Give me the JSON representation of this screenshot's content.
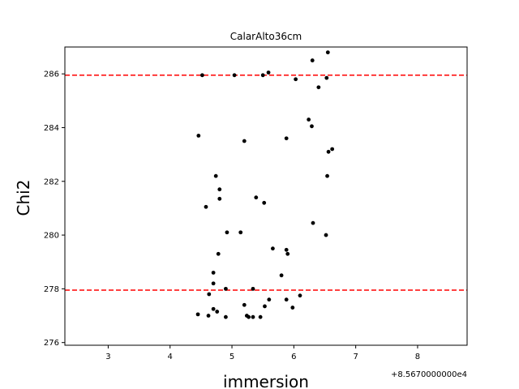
{
  "chart_data": {
    "type": "scatter",
    "title": "CalarAlto36cm",
    "xlabel": "immersion",
    "ylabel": "Chi2",
    "x_offset_label": "+8.5670000000e4",
    "x_ticks": [
      3,
      4,
      5,
      6,
      7,
      8
    ],
    "y_ticks": [
      276,
      278,
      280,
      282,
      284,
      286
    ],
    "xlim": [
      2.3,
      8.8
    ],
    "ylim": [
      275.9,
      287.0
    ],
    "grid": false,
    "point_color": "#000000",
    "reference_lines": [
      {
        "y": 285.95,
        "color": "#ff0000",
        "style": "dashed"
      },
      {
        "y": 277.95,
        "color": "#ff0000",
        "style": "dashed"
      }
    ],
    "points": [
      {
        "x": 4.45,
        "y": 277.05
      },
      {
        "x": 4.62,
        "y": 277.0
      },
      {
        "x": 4.7,
        "y": 277.25
      },
      {
        "x": 4.76,
        "y": 277.15
      },
      {
        "x": 4.9,
        "y": 276.95
      },
      {
        "x": 4.63,
        "y": 277.8
      },
      {
        "x": 4.7,
        "y": 278.2
      },
      {
        "x": 4.7,
        "y": 278.6
      },
      {
        "x": 4.9,
        "y": 278.0
      },
      {
        "x": 4.78,
        "y": 279.3
      },
      {
        "x": 4.92,
        "y": 280.1
      },
      {
        "x": 4.58,
        "y": 281.05
      },
      {
        "x": 4.8,
        "y": 281.35
      },
      {
        "x": 4.8,
        "y": 281.7
      },
      {
        "x": 4.74,
        "y": 282.2
      },
      {
        "x": 4.46,
        "y": 283.7
      },
      {
        "x": 4.52,
        "y": 285.95
      },
      {
        "x": 5.04,
        "y": 285.95
      },
      {
        "x": 5.14,
        "y": 280.1
      },
      {
        "x": 5.2,
        "y": 283.5
      },
      {
        "x": 5.2,
        "y": 277.4
      },
      {
        "x": 5.24,
        "y": 277.0
      },
      {
        "x": 5.27,
        "y": 276.95
      },
      {
        "x": 5.34,
        "y": 276.95
      },
      {
        "x": 5.46,
        "y": 276.95
      },
      {
        "x": 5.34,
        "y": 278.0
      },
      {
        "x": 5.39,
        "y": 281.4
      },
      {
        "x": 5.52,
        "y": 281.2
      },
      {
        "x": 5.53,
        "y": 277.35
      },
      {
        "x": 5.6,
        "y": 277.6
      },
      {
        "x": 5.66,
        "y": 279.5
      },
      {
        "x": 5.5,
        "y": 285.95
      },
      {
        "x": 5.59,
        "y": 286.05
      },
      {
        "x": 5.8,
        "y": 278.5
      },
      {
        "x": 5.88,
        "y": 277.6
      },
      {
        "x": 5.88,
        "y": 279.45
      },
      {
        "x": 5.9,
        "y": 279.3
      },
      {
        "x": 5.88,
        "y": 283.6
      },
      {
        "x": 5.98,
        "y": 277.3
      },
      {
        "x": 6.1,
        "y": 277.75
      },
      {
        "x": 6.03,
        "y": 285.8
      },
      {
        "x": 6.24,
        "y": 284.3
      },
      {
        "x": 6.29,
        "y": 284.05
      },
      {
        "x": 6.31,
        "y": 280.45
      },
      {
        "x": 6.3,
        "y": 286.5
      },
      {
        "x": 6.4,
        "y": 285.5
      },
      {
        "x": 6.52,
        "y": 280.0
      },
      {
        "x": 6.53,
        "y": 285.85
      },
      {
        "x": 6.54,
        "y": 282.2
      },
      {
        "x": 6.56,
        "y": 283.1
      },
      {
        "x": 6.62,
        "y": 283.2
      },
      {
        "x": 6.55,
        "y": 286.8
      }
    ]
  }
}
